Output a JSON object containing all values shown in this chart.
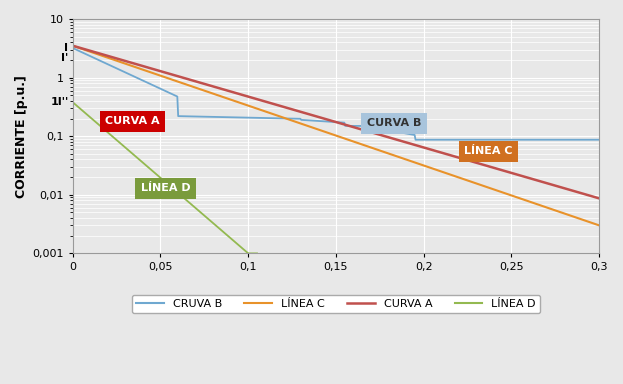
{
  "ylabel": "CORRIENTE [p.u.]",
  "xlim": [
    0,
    0.3
  ],
  "ylim_log": [
    0.001,
    10
  ],
  "yticks_values": [
    0.001,
    0.01,
    0.1,
    1,
    10
  ],
  "ytick_labels": [
    "0,001",
    "0,01",
    "0,1",
    "1",
    "10"
  ],
  "xticks": [
    0,
    0.05,
    0.1,
    0.15,
    0.2,
    0.25,
    0.3
  ],
  "xtick_labels": [
    "0",
    "0,05",
    "0,1",
    "0,15",
    "0,2",
    "0,25",
    "0,3"
  ],
  "extra_ytick_labels": [
    "I",
    "I'",
    "1I''"
  ],
  "extra_ytick_values": [
    3.2,
    2.2,
    0.38
  ],
  "background_color": "#e8e8e8",
  "grid_color": "#ffffff",
  "line_curva_b_color": "#6FA8D0",
  "line_linea_c_color": "#E8922A",
  "line_curva_a_color": "#C0504D",
  "line_linea_d_color": "#93B950",
  "box_curva_a_color": "#CC0000",
  "box_curva_b_facecolor": "#A8C4DC",
  "box_curva_b_textcolor": "#333333",
  "box_linea_c_color": "#D07020",
  "box_linea_d_color": "#7A9B3C",
  "legend_entries": [
    "CRUVA B",
    "LÍNEA C",
    "CURVA A",
    "LÍNEA D"
  ]
}
